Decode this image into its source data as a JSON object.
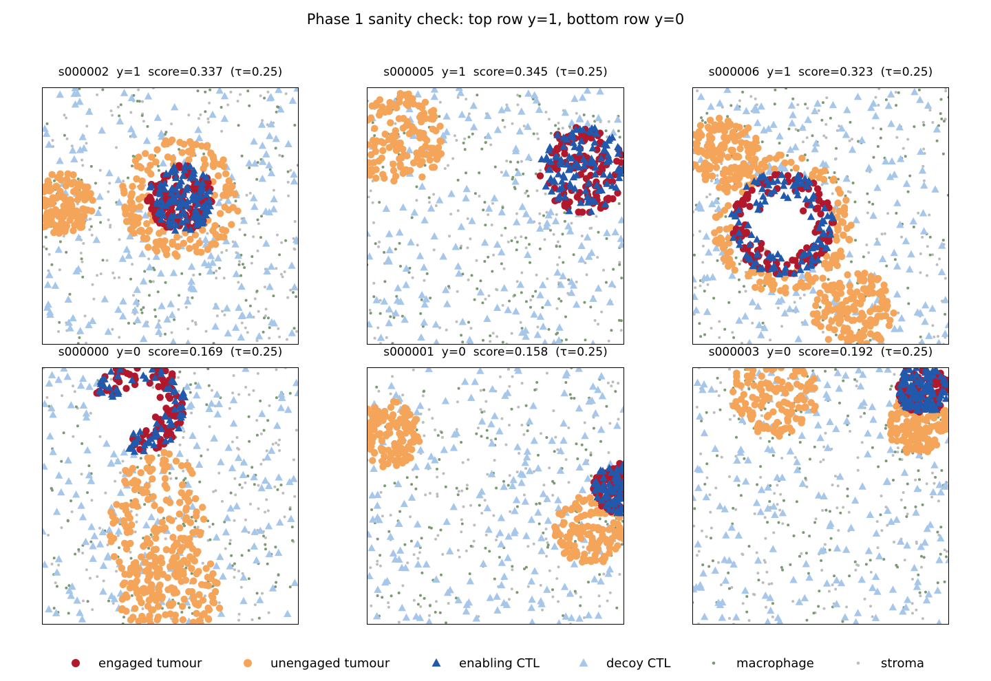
{
  "title": "Phase 1 sanity check: top row y=1, bottom row y=0",
  "legend": [
    {
      "key": "engaged",
      "label": "engaged tumour",
      "marker": "circle",
      "color": "#b2182b"
    },
    {
      "key": "unengaged",
      "label": "unengaged tumour",
      "marker": "circle",
      "color": "#f4a55a"
    },
    {
      "key": "enabling",
      "label": "enabling CTL",
      "marker": "triangle",
      "color": "#2159ad"
    },
    {
      "key": "decoy",
      "label": "decoy CTL",
      "marker": "triangle",
      "color": "#a6c6ea"
    },
    {
      "key": "macrophage",
      "label": "macrophage",
      "marker": "dot",
      "color": "#7a9a72"
    },
    {
      "key": "stroma",
      "label": "stroma",
      "marker": "dot",
      "color": "#bdbdbd"
    }
  ],
  "chart_data": [
    {
      "type": "scatter",
      "title": "s000002  y=1  score=0.337  (τ=0.25)",
      "sample": "s000002",
      "y": 1,
      "score": 0.337,
      "tau": 0.25,
      "xlim": [
        0,
        1
      ],
      "ylim": [
        0,
        1
      ],
      "axes_ticks": false,
      "clusters": [
        {
          "kind": "engaged_core",
          "center": [
            0.54,
            0.43
          ],
          "radius": 0.13
        },
        {
          "kind": "unengaged_ring",
          "center": [
            0.54,
            0.43
          ],
          "inner": 0.12,
          "outer": 0.23
        },
        {
          "kind": "unengaged_blob",
          "center": [
            0.08,
            0.45
          ],
          "radius": 0.12
        }
      ]
    },
    {
      "type": "scatter",
      "title": "s000005  y=1  score=0.345  (τ=0.25)",
      "sample": "s000005",
      "y": 1,
      "score": 0.345,
      "tau": 0.25,
      "xlim": [
        0,
        1
      ],
      "ylim": [
        0,
        1
      ],
      "axes_ticks": false,
      "clusters": [
        {
          "kind": "engaged_core",
          "center": [
            0.84,
            0.32
          ],
          "radius": 0.17
        },
        {
          "kind": "unengaged_blob",
          "center": [
            0.12,
            0.2
          ],
          "radius": 0.18
        }
      ]
    },
    {
      "type": "scatter",
      "title": "s000006  y=1  score=0.323  (τ=0.25)",
      "sample": "s000006",
      "y": 1,
      "score": 0.323,
      "tau": 0.25,
      "xlim": [
        0,
        1
      ],
      "ylim": [
        0,
        1
      ],
      "axes_ticks": false,
      "clusters": [
        {
          "kind": "engaged_ring",
          "center": [
            0.35,
            0.53
          ],
          "inner": 0.09,
          "outer": 0.2
        },
        {
          "kind": "unengaged_ring",
          "center": [
            0.35,
            0.53
          ],
          "inner": 0.18,
          "outer": 0.27
        },
        {
          "kind": "unengaged_blob",
          "center": [
            0.12,
            0.25
          ],
          "radius": 0.14
        },
        {
          "kind": "unengaged_blob",
          "center": [
            0.63,
            0.87
          ],
          "radius": 0.16
        }
      ]
    },
    {
      "type": "scatter",
      "title": "s000000  y=0  score=0.169  (τ=0.25)",
      "sample": "s000000",
      "y": 0,
      "score": 0.169,
      "tau": 0.25,
      "xlim": [
        0,
        1
      ],
      "ylim": [
        0,
        1
      ],
      "axes_ticks": false,
      "clusters": [
        {
          "kind": "engaged_crescent",
          "center": [
            0.38,
            0.15
          ],
          "inner": 0.07,
          "outer": 0.18
        },
        {
          "kind": "unengaged_band",
          "center": [
            0.45,
            0.6
          ],
          "radius": 0.2
        },
        {
          "kind": "unengaged_blob",
          "center": [
            0.5,
            0.88
          ],
          "radius": 0.2
        }
      ]
    },
    {
      "type": "scatter",
      "title": "s000001  y=0  score=0.158  (τ=0.25)",
      "sample": "s000001",
      "y": 0,
      "score": 0.158,
      "tau": 0.25,
      "xlim": [
        0,
        1
      ],
      "ylim": [
        0,
        1
      ],
      "axes_ticks": false,
      "clusters": [
        {
          "kind": "engaged_core",
          "center": [
            0.98,
            0.47
          ],
          "radius": 0.1
        },
        {
          "kind": "unengaged_blob",
          "center": [
            0.87,
            0.63
          ],
          "radius": 0.14
        },
        {
          "kind": "unengaged_blob",
          "center": [
            0.08,
            0.26
          ],
          "radius": 0.13
        }
      ]
    },
    {
      "type": "scatter",
      "title": "s000003  y=0  score=0.192  (τ=0.25)",
      "sample": "s000003",
      "y": 0,
      "score": 0.192,
      "tau": 0.25,
      "xlim": [
        0,
        1
      ],
      "ylim": [
        0,
        1
      ],
      "axes_ticks": false,
      "clusters": [
        {
          "kind": "engaged_core",
          "center": [
            0.9,
            0.08
          ],
          "radius": 0.1
        },
        {
          "kind": "unengaged_blob",
          "center": [
            0.32,
            0.1
          ],
          "radius": 0.17
        },
        {
          "kind": "unengaged_blob",
          "center": [
            0.88,
            0.22
          ],
          "radius": 0.12
        }
      ]
    }
  ]
}
